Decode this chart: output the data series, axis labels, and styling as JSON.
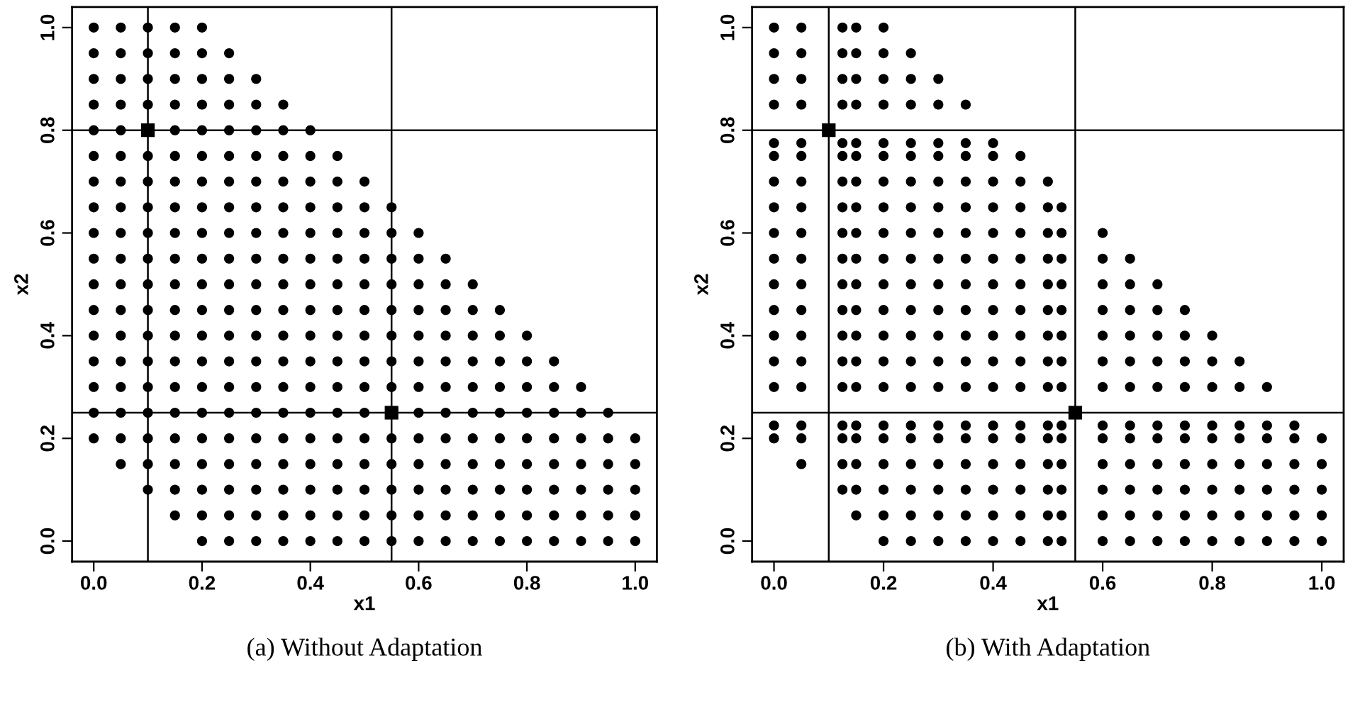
{
  "chart_data": [
    {
      "type": "scatter",
      "title": "(a) Without Adaptation",
      "xlabel": "x1",
      "ylabel": "x2",
      "marker": "circle",
      "grid": false,
      "xlim": [
        -0.04,
        1.04
      ],
      "ylim": [
        -0.04,
        1.04
      ],
      "xticks": [
        {
          "value": 0,
          "label": "0.0"
        },
        {
          "value": 0.2,
          "label": "0.2"
        },
        {
          "value": 0.4,
          "label": "0.4"
        },
        {
          "value": 0.6,
          "label": "0.6"
        },
        {
          "value": 0.8,
          "label": "0.8"
        },
        {
          "value": 1,
          "label": "1.0"
        }
      ],
      "yticks": [
        {
          "value": 0,
          "label": "0.0"
        },
        {
          "value": 0.2,
          "label": "0.2"
        },
        {
          "value": 0.4,
          "label": "0.4"
        },
        {
          "value": 0.6,
          "label": "0.6"
        },
        {
          "value": 0.8,
          "label": "0.8"
        },
        {
          "value": 1,
          "label": "1.0"
        }
      ],
      "ref_lines": [
        {
          "axis": "x",
          "value": 0.1,
          "color": "#000000"
        },
        {
          "axis": "x",
          "value": 0.55,
          "color": "#000000"
        },
        {
          "axis": "y",
          "value": 0.8,
          "color": "#000000"
        },
        {
          "axis": "y",
          "value": 0.25,
          "color": "#000000"
        }
      ],
      "series": [
        {
          "color": "#000000",
          "x": [
            0,
            0.05,
            0.1,
            0.15,
            0.2
          ],
          "values": [
            1,
            1,
            1,
            1,
            1
          ]
        },
        {
          "color": "#000000",
          "x": [
            0,
            0.05,
            0.1,
            0.15,
            0.2,
            0.25
          ],
          "values": [
            0.95,
            0.95,
            0.95,
            0.95,
            0.95,
            0.95
          ]
        },
        {
          "color": "#000000",
          "x": [
            0,
            0.05,
            0.1,
            0.15,
            0.2,
            0.25,
            0.3
          ],
          "values": [
            0.9,
            0.9,
            0.9,
            0.9,
            0.9,
            0.9,
            0.9
          ]
        },
        {
          "color": "#000000",
          "x": [
            0,
            0.05,
            0.1,
            0.15,
            0.2,
            0.25,
            0.3,
            0.35
          ],
          "values": [
            0.85,
            0.85,
            0.85,
            0.85,
            0.85,
            0.85,
            0.85,
            0.85
          ]
        },
        {
          "color": "#000000",
          "x": [
            0,
            0.05,
            0.15,
            0.2,
            0.25,
            0.3,
            0.35,
            0.4
          ],
          "values": [
            0.8,
            0.8,
            0.8,
            0.8,
            0.8,
            0.8,
            0.8,
            0.8
          ]
        },
        {
          "color": "#000000",
          "x": [
            0,
            0.05,
            0.1,
            0.15,
            0.2,
            0.25,
            0.3,
            0.35,
            0.4,
            0.45
          ],
          "values": [
            0.75,
            0.75,
            0.75,
            0.75,
            0.75,
            0.75,
            0.75,
            0.75,
            0.75,
            0.75
          ]
        },
        {
          "color": "#000000",
          "x": [
            0,
            0.05,
            0.1,
            0.15,
            0.2,
            0.25,
            0.3,
            0.35,
            0.4,
            0.45,
            0.5
          ],
          "values": [
            0.7,
            0.7,
            0.7,
            0.7,
            0.7,
            0.7,
            0.7,
            0.7,
            0.7,
            0.7,
            0.7
          ]
        },
        {
          "color": "#000000",
          "x": [
            0,
            0.05,
            0.1,
            0.15,
            0.2,
            0.25,
            0.3,
            0.35,
            0.4,
            0.45,
            0.5,
            0.55
          ],
          "values": [
            0.65,
            0.65,
            0.65,
            0.65,
            0.65,
            0.65,
            0.65,
            0.65,
            0.65,
            0.65,
            0.65,
            0.65
          ]
        },
        {
          "color": "#000000",
          "x": [
            0,
            0.05,
            0.1,
            0.15,
            0.2,
            0.25,
            0.3,
            0.35,
            0.4,
            0.45,
            0.5,
            0.55,
            0.6
          ],
          "values": [
            0.6,
            0.6,
            0.6,
            0.6,
            0.6,
            0.6,
            0.6,
            0.6,
            0.6,
            0.6,
            0.6,
            0.6,
            0.6
          ]
        },
        {
          "color": "#000000",
          "x": [
            0,
            0.05,
            0.1,
            0.15,
            0.2,
            0.25,
            0.3,
            0.35,
            0.4,
            0.45,
            0.5,
            0.55,
            0.6,
            0.65
          ],
          "values": [
            0.55,
            0.55,
            0.55,
            0.55,
            0.55,
            0.55,
            0.55,
            0.55,
            0.55,
            0.55,
            0.55,
            0.55,
            0.55,
            0.55
          ]
        },
        {
          "color": "#000000",
          "x": [
            0,
            0.05,
            0.1,
            0.15,
            0.2,
            0.25,
            0.3,
            0.35,
            0.4,
            0.45,
            0.5,
            0.55,
            0.6,
            0.65,
            0.7
          ],
          "values": [
            0.5,
            0.5,
            0.5,
            0.5,
            0.5,
            0.5,
            0.5,
            0.5,
            0.5,
            0.5,
            0.5,
            0.5,
            0.5,
            0.5,
            0.5
          ]
        },
        {
          "color": "#000000",
          "x": [
            0,
            0.05,
            0.1,
            0.15,
            0.2,
            0.25,
            0.3,
            0.35,
            0.4,
            0.45,
            0.5,
            0.55,
            0.6,
            0.65,
            0.7,
            0.75
          ],
          "values": [
            0.45,
            0.45,
            0.45,
            0.45,
            0.45,
            0.45,
            0.45,
            0.45,
            0.45,
            0.45,
            0.45,
            0.45,
            0.45,
            0.45,
            0.45,
            0.45
          ]
        },
        {
          "color": "#000000",
          "x": [
            0,
            0.05,
            0.1,
            0.15,
            0.2,
            0.25,
            0.3,
            0.35,
            0.4,
            0.45,
            0.5,
            0.55,
            0.6,
            0.65,
            0.7,
            0.75,
            0.8
          ],
          "values": [
            0.4,
            0.4,
            0.4,
            0.4,
            0.4,
            0.4,
            0.4,
            0.4,
            0.4,
            0.4,
            0.4,
            0.4,
            0.4,
            0.4,
            0.4,
            0.4,
            0.4
          ]
        },
        {
          "color": "#000000",
          "x": [
            0,
            0.05,
            0.1,
            0.15,
            0.2,
            0.25,
            0.3,
            0.35,
            0.4,
            0.45,
            0.5,
            0.55,
            0.6,
            0.65,
            0.7,
            0.75,
            0.8,
            0.85
          ],
          "values": [
            0.35,
            0.35,
            0.35,
            0.35,
            0.35,
            0.35,
            0.35,
            0.35,
            0.35,
            0.35,
            0.35,
            0.35,
            0.35,
            0.35,
            0.35,
            0.35,
            0.35,
            0.35
          ]
        },
        {
          "color": "#000000",
          "x": [
            0,
            0.05,
            0.1,
            0.15,
            0.2,
            0.25,
            0.3,
            0.35,
            0.4,
            0.45,
            0.5,
            0.55,
            0.6,
            0.65,
            0.7,
            0.75,
            0.8,
            0.85,
            0.9
          ],
          "values": [
            0.3,
            0.3,
            0.3,
            0.3,
            0.3,
            0.3,
            0.3,
            0.3,
            0.3,
            0.3,
            0.3,
            0.3,
            0.3,
            0.3,
            0.3,
            0.3,
            0.3,
            0.3,
            0.3
          ]
        },
        {
          "color": "#000000",
          "x": [
            0,
            0.05,
            0.1,
            0.15,
            0.2,
            0.25,
            0.3,
            0.35,
            0.4,
            0.45,
            0.5,
            0.6,
            0.65,
            0.7,
            0.75,
            0.8,
            0.85,
            0.9,
            0.95
          ],
          "values": [
            0.25,
            0.25,
            0.25,
            0.25,
            0.25,
            0.25,
            0.25,
            0.25,
            0.25,
            0.25,
            0.25,
            0.25,
            0.25,
            0.25,
            0.25,
            0.25,
            0.25,
            0.25,
            0.25
          ]
        },
        {
          "color": "#000000",
          "x": [
            0,
            0.05,
            0.1,
            0.15,
            0.2,
            0.25,
            0.3,
            0.35,
            0.4,
            0.45,
            0.5,
            0.55,
            0.6,
            0.65,
            0.7,
            0.75,
            0.8,
            0.85,
            0.9,
            0.95,
            1
          ],
          "values": [
            0.2,
            0.2,
            0.2,
            0.2,
            0.2,
            0.2,
            0.2,
            0.2,
            0.2,
            0.2,
            0.2,
            0.2,
            0.2,
            0.2,
            0.2,
            0.2,
            0.2,
            0.2,
            0.2,
            0.2,
            0.2
          ]
        },
        {
          "color": "#000000",
          "x": [
            0.05,
            0.1,
            0.15,
            0.2,
            0.25,
            0.3,
            0.35,
            0.4,
            0.45,
            0.5,
            0.55,
            0.6,
            0.65,
            0.7,
            0.75,
            0.8,
            0.85,
            0.9,
            0.95,
            1
          ],
          "values": [
            0.15,
            0.15,
            0.15,
            0.15,
            0.15,
            0.15,
            0.15,
            0.15,
            0.15,
            0.15,
            0.15,
            0.15,
            0.15,
            0.15,
            0.15,
            0.15,
            0.15,
            0.15,
            0.15,
            0.15
          ]
        },
        {
          "color": "#000000",
          "x": [
            0.1,
            0.15,
            0.2,
            0.25,
            0.3,
            0.35,
            0.4,
            0.45,
            0.5,
            0.55,
            0.6,
            0.65,
            0.7,
            0.75,
            0.8,
            0.85,
            0.9,
            0.95,
            1
          ],
          "values": [
            0.1,
            0.1,
            0.1,
            0.1,
            0.1,
            0.1,
            0.1,
            0.1,
            0.1,
            0.1,
            0.1,
            0.1,
            0.1,
            0.1,
            0.1,
            0.1,
            0.1,
            0.1,
            0.1
          ]
        },
        {
          "color": "#000000",
          "x": [
            0.15,
            0.2,
            0.25,
            0.3,
            0.35,
            0.4,
            0.45,
            0.5,
            0.55,
            0.6,
            0.65,
            0.7,
            0.75,
            0.8,
            0.85,
            0.9,
            0.95,
            1
          ],
          "values": [
            0.05,
            0.05,
            0.05,
            0.05,
            0.05,
            0.05,
            0.05,
            0.05,
            0.05,
            0.05,
            0.05,
            0.05,
            0.05,
            0.05,
            0.05,
            0.05,
            0.05,
            0.05
          ]
        },
        {
          "color": "#000000",
          "x": [
            0.2,
            0.25,
            0.3,
            0.35,
            0.4,
            0.45,
            0.5,
            0.55,
            0.6,
            0.65,
            0.7,
            0.75,
            0.8,
            0.85,
            0.9,
            0.95,
            1
          ],
          "values": [
            0,
            0,
            0,
            0,
            0,
            0,
            0,
            0,
            0,
            0,
            0,
            0,
            0,
            0,
            0,
            0,
            0
          ]
        },
        {
          "color": "#000000",
          "marker": "square",
          "x": [
            0.1,
            0.55
          ],
          "values": [
            0.8,
            0.25
          ]
        }
      ]
    },
    {
      "type": "scatter",
      "title": "(b) With Adaptation",
      "xlabel": "x1",
      "ylabel": "x2",
      "marker": "circle",
      "grid": false,
      "xlim": [
        -0.04,
        1.04
      ],
      "ylim": [
        -0.04,
        1.04
      ],
      "xticks": [
        {
          "value": 0,
          "label": "0.0"
        },
        {
          "value": 0.2,
          "label": "0.2"
        },
        {
          "value": 0.4,
          "label": "0.4"
        },
        {
          "value": 0.6,
          "label": "0.6"
        },
        {
          "value": 0.8,
          "label": "0.8"
        },
        {
          "value": 1,
          "label": "1.0"
        }
      ],
      "yticks": [
        {
          "value": 0,
          "label": "0.0"
        },
        {
          "value": 0.2,
          "label": "0.2"
        },
        {
          "value": 0.4,
          "label": "0.4"
        },
        {
          "value": 0.6,
          "label": "0.6"
        },
        {
          "value": 0.8,
          "label": "0.8"
        },
        {
          "value": 1,
          "label": "1.0"
        }
      ],
      "ref_lines": [
        {
          "axis": "x",
          "value": 0.1,
          "color": "#000000"
        },
        {
          "axis": "x",
          "value": 0.55,
          "color": "#000000"
        },
        {
          "axis": "y",
          "value": 0.8,
          "color": "#000000"
        },
        {
          "axis": "y",
          "value": 0.25,
          "color": "#000000"
        }
      ],
      "series": [
        {
          "color": "#000000",
          "x": [
            0,
            0.05,
            0.125,
            0.15,
            0.2
          ],
          "values": [
            1,
            1,
            1,
            1,
            1
          ]
        },
        {
          "color": "#000000",
          "x": [
            0,
            0.05,
            0.125,
            0.15,
            0.2,
            0.25
          ],
          "values": [
            0.95,
            0.95,
            0.95,
            0.95,
            0.95,
            0.95
          ]
        },
        {
          "color": "#000000",
          "x": [
            0,
            0.05,
            0.125,
            0.15,
            0.2,
            0.25,
            0.3
          ],
          "values": [
            0.9,
            0.9,
            0.9,
            0.9,
            0.9,
            0.9,
            0.9
          ]
        },
        {
          "color": "#000000",
          "x": [
            0,
            0.05,
            0.125,
            0.15,
            0.2,
            0.25,
            0.3,
            0.35
          ],
          "values": [
            0.85,
            0.85,
            0.85,
            0.85,
            0.85,
            0.85,
            0.85,
            0.85
          ]
        },
        {
          "color": "#000000",
          "x": [
            0,
            0.05,
            0.125,
            0.15,
            0.2,
            0.25,
            0.3,
            0.35,
            0.4
          ],
          "values": [
            0.775,
            0.775,
            0.775,
            0.775,
            0.775,
            0.775,
            0.775,
            0.775,
            0.775
          ]
        },
        {
          "color": "#000000",
          "x": [
            0,
            0.05,
            0.125,
            0.15,
            0.2,
            0.25,
            0.3,
            0.35,
            0.4,
            0.45
          ],
          "values": [
            0.75,
            0.75,
            0.75,
            0.75,
            0.75,
            0.75,
            0.75,
            0.75,
            0.75,
            0.75
          ]
        },
        {
          "color": "#000000",
          "x": [
            0,
            0.05,
            0.125,
            0.15,
            0.2,
            0.25,
            0.3,
            0.35,
            0.4,
            0.45,
            0.5
          ],
          "values": [
            0.7,
            0.7,
            0.7,
            0.7,
            0.7,
            0.7,
            0.7,
            0.7,
            0.7,
            0.7,
            0.7
          ]
        },
        {
          "color": "#000000",
          "x": [
            0,
            0.05,
            0.125,
            0.15,
            0.2,
            0.25,
            0.3,
            0.35,
            0.4,
            0.45,
            0.5,
            0.525
          ],
          "values": [
            0.65,
            0.65,
            0.65,
            0.65,
            0.65,
            0.65,
            0.65,
            0.65,
            0.65,
            0.65,
            0.65,
            0.65
          ]
        },
        {
          "color": "#000000",
          "x": [
            0,
            0.05,
            0.125,
            0.15,
            0.2,
            0.25,
            0.3,
            0.35,
            0.4,
            0.45,
            0.5,
            0.525,
            0.6
          ],
          "values": [
            0.6,
            0.6,
            0.6,
            0.6,
            0.6,
            0.6,
            0.6,
            0.6,
            0.6,
            0.6,
            0.6,
            0.6,
            0.6
          ]
        },
        {
          "color": "#000000",
          "x": [
            0,
            0.05,
            0.125,
            0.15,
            0.2,
            0.25,
            0.3,
            0.35,
            0.4,
            0.45,
            0.5,
            0.525,
            0.6,
            0.65
          ],
          "values": [
            0.55,
            0.55,
            0.55,
            0.55,
            0.55,
            0.55,
            0.55,
            0.55,
            0.55,
            0.55,
            0.55,
            0.55,
            0.55,
            0.55
          ]
        },
        {
          "color": "#000000",
          "x": [
            0,
            0.05,
            0.125,
            0.15,
            0.2,
            0.25,
            0.3,
            0.35,
            0.4,
            0.45,
            0.5,
            0.525,
            0.6,
            0.65,
            0.7
          ],
          "values": [
            0.5,
            0.5,
            0.5,
            0.5,
            0.5,
            0.5,
            0.5,
            0.5,
            0.5,
            0.5,
            0.5,
            0.5,
            0.5,
            0.5,
            0.5
          ]
        },
        {
          "color": "#000000",
          "x": [
            0,
            0.05,
            0.125,
            0.15,
            0.2,
            0.25,
            0.3,
            0.35,
            0.4,
            0.45,
            0.5,
            0.525,
            0.6,
            0.65,
            0.7,
            0.75
          ],
          "values": [
            0.45,
            0.45,
            0.45,
            0.45,
            0.45,
            0.45,
            0.45,
            0.45,
            0.45,
            0.45,
            0.45,
            0.45,
            0.45,
            0.45,
            0.45,
            0.45
          ]
        },
        {
          "color": "#000000",
          "x": [
            0,
            0.05,
            0.125,
            0.15,
            0.2,
            0.25,
            0.3,
            0.35,
            0.4,
            0.45,
            0.5,
            0.525,
            0.6,
            0.65,
            0.7,
            0.75,
            0.8
          ],
          "values": [
            0.4,
            0.4,
            0.4,
            0.4,
            0.4,
            0.4,
            0.4,
            0.4,
            0.4,
            0.4,
            0.4,
            0.4,
            0.4,
            0.4,
            0.4,
            0.4,
            0.4
          ]
        },
        {
          "color": "#000000",
          "x": [
            0,
            0.05,
            0.125,
            0.15,
            0.2,
            0.25,
            0.3,
            0.35,
            0.4,
            0.45,
            0.5,
            0.525,
            0.6,
            0.65,
            0.7,
            0.75,
            0.8,
            0.85
          ],
          "values": [
            0.35,
            0.35,
            0.35,
            0.35,
            0.35,
            0.35,
            0.35,
            0.35,
            0.35,
            0.35,
            0.35,
            0.35,
            0.35,
            0.35,
            0.35,
            0.35,
            0.35,
            0.35
          ]
        },
        {
          "color": "#000000",
          "x": [
            0,
            0.05,
            0.125,
            0.15,
            0.2,
            0.25,
            0.3,
            0.35,
            0.4,
            0.45,
            0.5,
            0.525,
            0.6,
            0.65,
            0.7,
            0.75,
            0.8,
            0.85,
            0.9
          ],
          "values": [
            0.3,
            0.3,
            0.3,
            0.3,
            0.3,
            0.3,
            0.3,
            0.3,
            0.3,
            0.3,
            0.3,
            0.3,
            0.3,
            0.3,
            0.3,
            0.3,
            0.3,
            0.3,
            0.3
          ]
        },
        {
          "color": "#000000",
          "x": [
            0,
            0.05,
            0.125,
            0.15,
            0.2,
            0.25,
            0.3,
            0.35,
            0.4,
            0.45,
            0.5,
            0.525,
            0.6,
            0.65,
            0.7,
            0.75,
            0.8,
            0.85,
            0.9,
            0.95
          ],
          "values": [
            0.225,
            0.225,
            0.225,
            0.225,
            0.225,
            0.225,
            0.225,
            0.225,
            0.225,
            0.225,
            0.225,
            0.225,
            0.225,
            0.225,
            0.225,
            0.225,
            0.225,
            0.225,
            0.225,
            0.225
          ]
        },
        {
          "color": "#000000",
          "x": [
            0,
            0.05,
            0.125,
            0.15,
            0.2,
            0.25,
            0.3,
            0.35,
            0.4,
            0.45,
            0.5,
            0.525,
            0.6,
            0.65,
            0.7,
            0.75,
            0.8,
            0.85,
            0.9,
            0.95,
            1
          ],
          "values": [
            0.2,
            0.2,
            0.2,
            0.2,
            0.2,
            0.2,
            0.2,
            0.2,
            0.2,
            0.2,
            0.2,
            0.2,
            0.2,
            0.2,
            0.2,
            0.2,
            0.2,
            0.2,
            0.2,
            0.2,
            0.2
          ]
        },
        {
          "color": "#000000",
          "x": [
            0.05,
            0.125,
            0.15,
            0.2,
            0.25,
            0.3,
            0.35,
            0.4,
            0.45,
            0.5,
            0.525,
            0.6,
            0.65,
            0.7,
            0.75,
            0.8,
            0.85,
            0.9,
            0.95,
            1
          ],
          "values": [
            0.15,
            0.15,
            0.15,
            0.15,
            0.15,
            0.15,
            0.15,
            0.15,
            0.15,
            0.15,
            0.15,
            0.15,
            0.15,
            0.15,
            0.15,
            0.15,
            0.15,
            0.15,
            0.15,
            0.15
          ]
        },
        {
          "color": "#000000",
          "x": [
            0.125,
            0.15,
            0.2,
            0.25,
            0.3,
            0.35,
            0.4,
            0.45,
            0.5,
            0.525,
            0.6,
            0.65,
            0.7,
            0.75,
            0.8,
            0.85,
            0.9,
            0.95,
            1
          ],
          "values": [
            0.1,
            0.1,
            0.1,
            0.1,
            0.1,
            0.1,
            0.1,
            0.1,
            0.1,
            0.1,
            0.1,
            0.1,
            0.1,
            0.1,
            0.1,
            0.1,
            0.1,
            0.1,
            0.1
          ]
        },
        {
          "color": "#000000",
          "x": [
            0.15,
            0.2,
            0.25,
            0.3,
            0.35,
            0.4,
            0.45,
            0.5,
            0.525,
            0.6,
            0.65,
            0.7,
            0.75,
            0.8,
            0.85,
            0.9,
            0.95,
            1
          ],
          "values": [
            0.05,
            0.05,
            0.05,
            0.05,
            0.05,
            0.05,
            0.05,
            0.05,
            0.05,
            0.05,
            0.05,
            0.05,
            0.05,
            0.05,
            0.05,
            0.05,
            0.05,
            0.05
          ]
        },
        {
          "color": "#000000",
          "x": [
            0.2,
            0.25,
            0.3,
            0.35,
            0.4,
            0.45,
            0.5,
            0.525,
            0.6,
            0.65,
            0.7,
            0.75,
            0.8,
            0.85,
            0.9,
            0.95,
            1
          ],
          "values": [
            0,
            0,
            0,
            0,
            0,
            0,
            0,
            0,
            0,
            0,
            0,
            0,
            0,
            0,
            0,
            0,
            0
          ]
        },
        {
          "color": "#000000",
          "marker": "square",
          "x": [
            0.1,
            0.55
          ],
          "values": [
            0.8,
            0.25
          ]
        }
      ]
    }
  ]
}
